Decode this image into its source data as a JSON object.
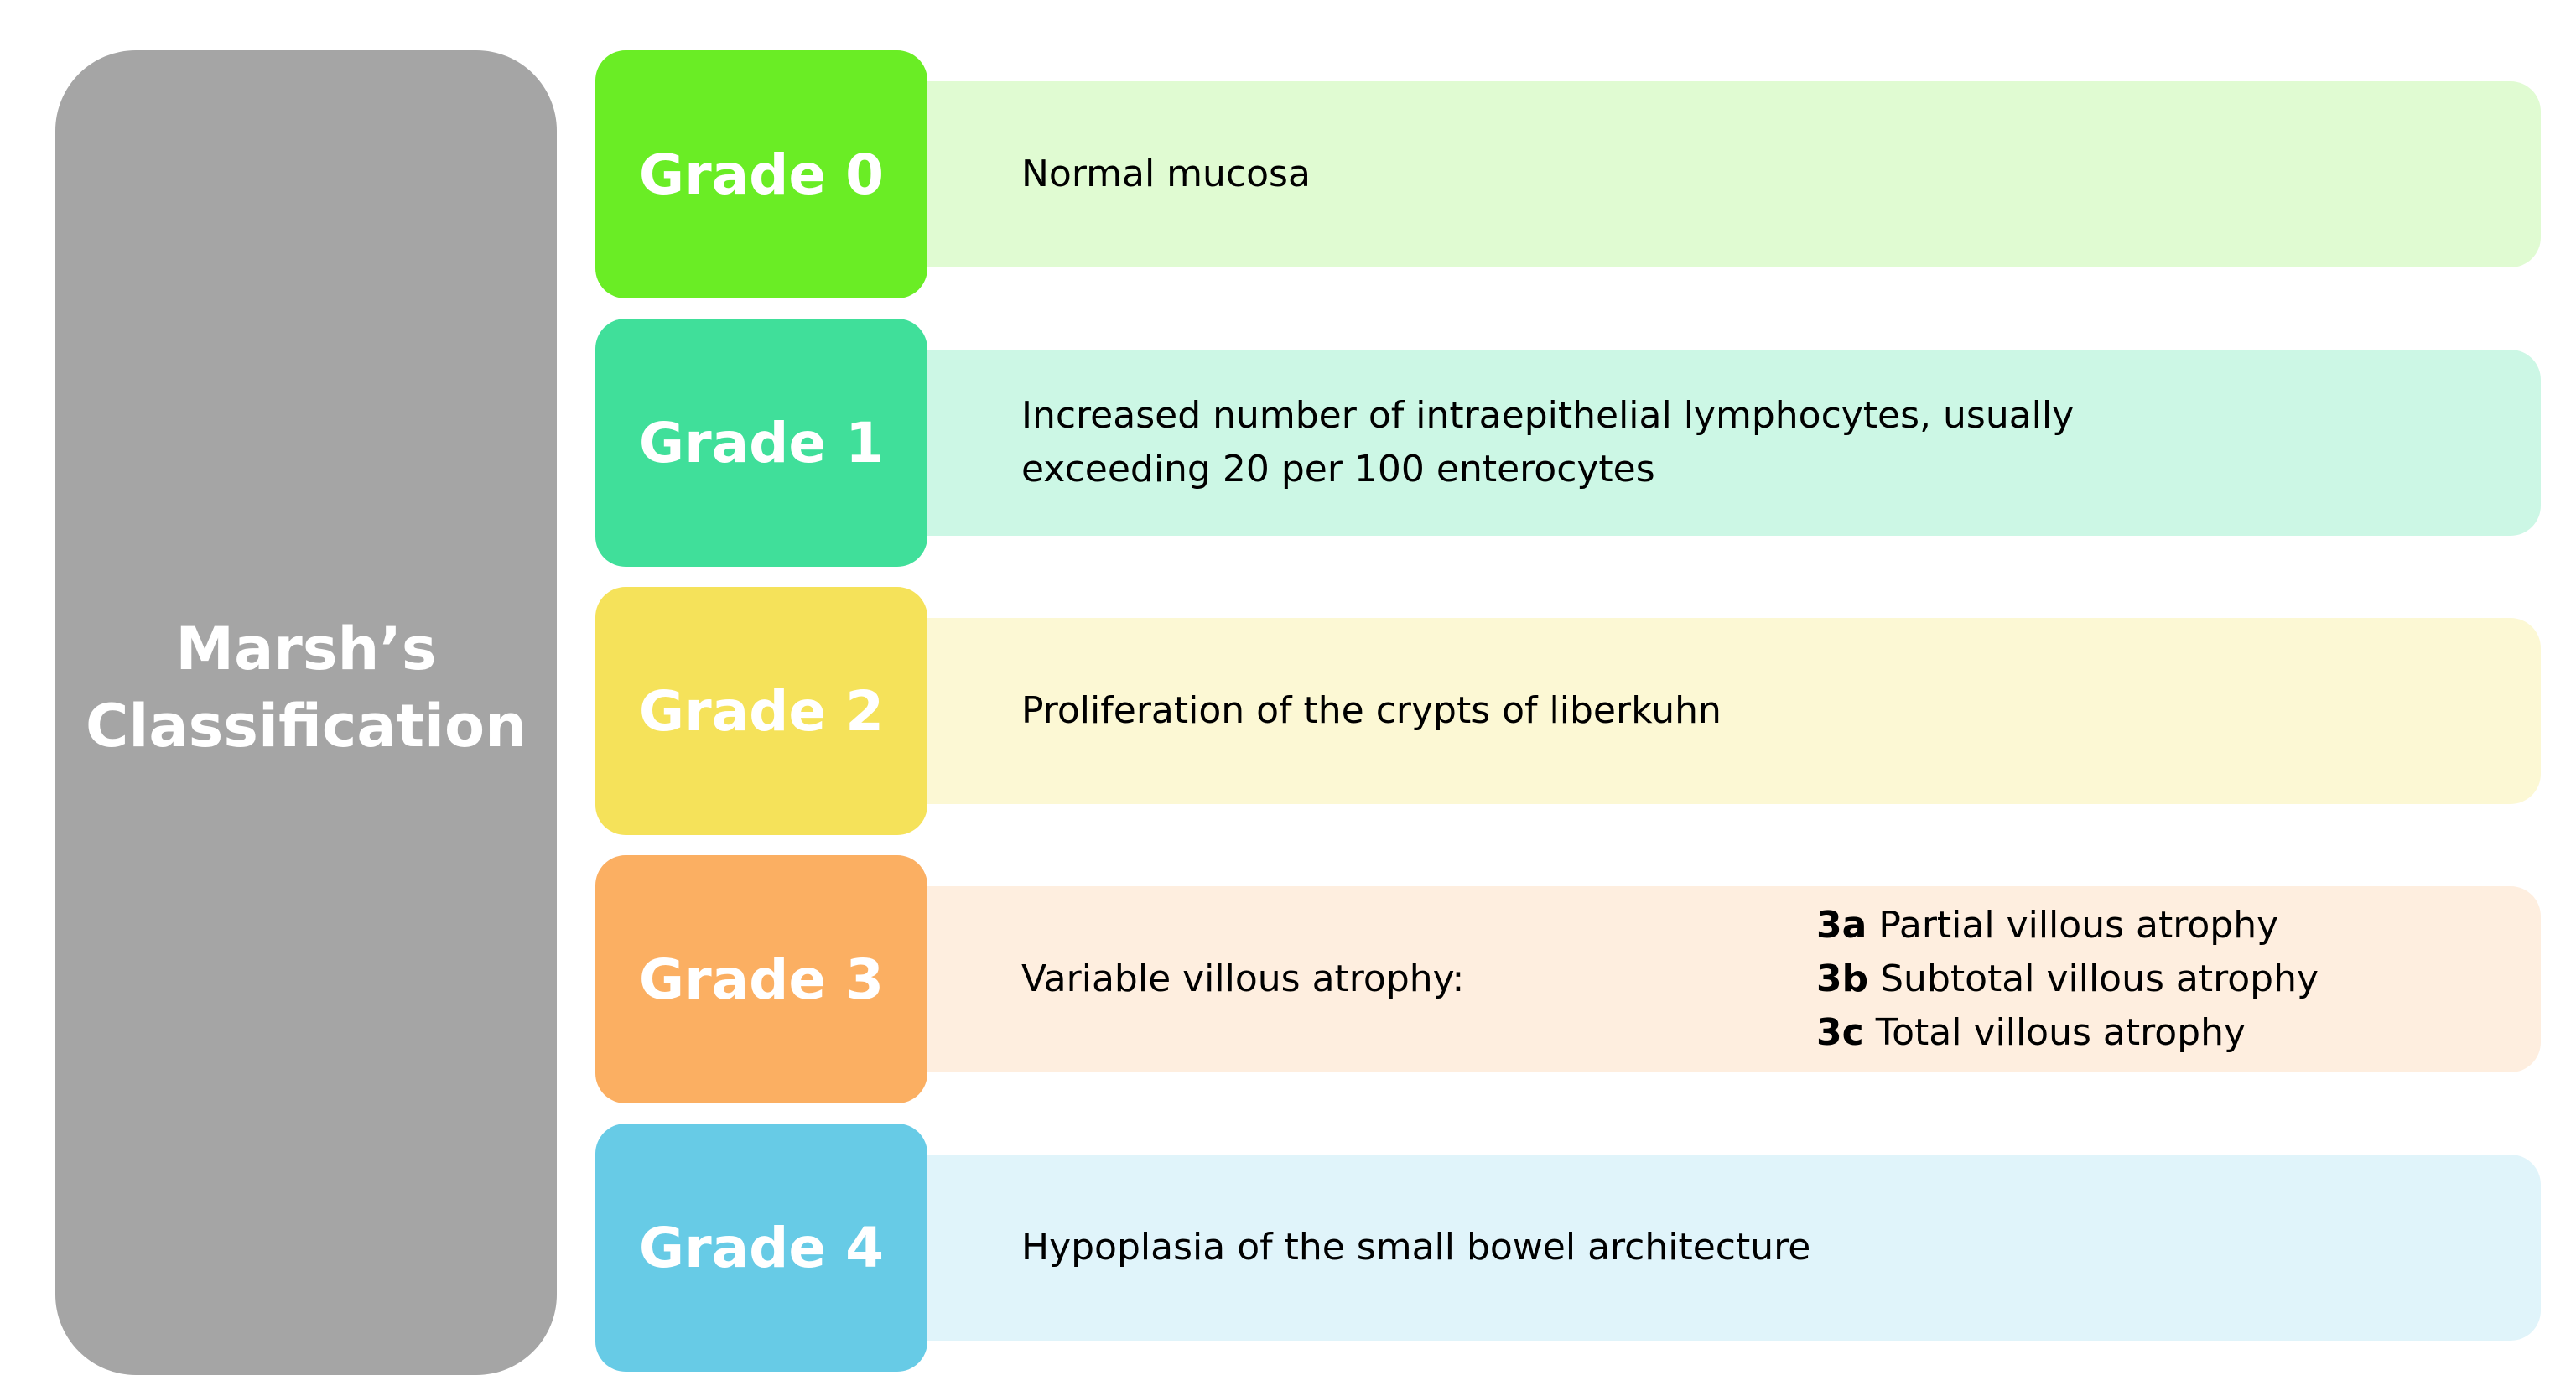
{
  "left_panel": {
    "title_line1": "Marsh’s",
    "title_line2": "Classification",
    "color": "#a5a5a5"
  },
  "grades": [
    {
      "label": "Grade 0",
      "box_color": "#6aed25",
      "bar_color": "#e0fbd2",
      "description": [
        "Normal mucosa"
      ]
    },
    {
      "label": "Grade 1",
      "box_color": "#40df9a",
      "bar_color": "#ccf7e5",
      "description": [
        "Increased number of intraepithelial lymphocytes, usually",
        "exceeding 20 per 100 enterocytes"
      ]
    },
    {
      "label": "Grade 2",
      "box_color": "#f5e25a",
      "bar_color": "#fcf8d4",
      "description": [
        "Proliferation of the crypts of liberkuhn"
      ]
    },
    {
      "label": "Grade 3",
      "box_color": "#fbaf62",
      "bar_color": "#feeedf",
      "description": [
        "Variable villous atrophy:"
      ],
      "subtypes": [
        {
          "code": "3a",
          "text": "Partial villous atrophy"
        },
        {
          "code": "3b",
          "text": "Subtotal villous atrophy"
        },
        {
          "code": "3c",
          "text": "Total villous atrophy"
        }
      ]
    },
    {
      "label": "Grade 4",
      "box_color": "#67cbe6",
      "bar_color": "#e0f4fa",
      "description": [
        "Hypoplasia of the small bowel architecture"
      ]
    }
  ]
}
